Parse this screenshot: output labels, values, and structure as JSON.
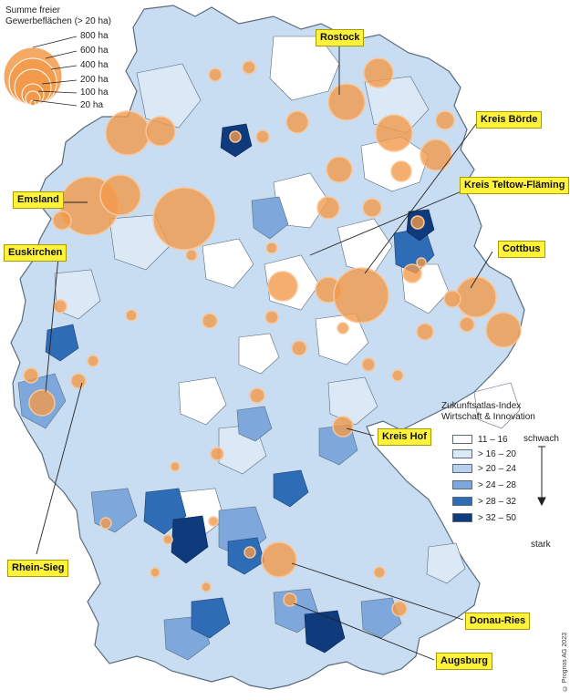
{
  "size_legend": {
    "title_line1": "Summe freier",
    "title_line2": "Gewerbeflächen (> 20 ha)",
    "entries": [
      "800 ha",
      "600 ha",
      "400 ha",
      "200 ha",
      "100 ha",
      "20 ha"
    ]
  },
  "index_legend": {
    "title_line1": "Zukunftsatlas-Index",
    "title_line2": "Wirtschaft & Innovation",
    "classes": [
      {
        "label": "11 – 16",
        "color": "#ffffff"
      },
      {
        "label": "> 16 – 20",
        "color": "#dbe9f7"
      },
      {
        "label": "> 20 – 24",
        "color": "#b6d0ee"
      },
      {
        "label": "> 24 – 28",
        "color": "#7ea8dc"
      },
      {
        "label": "> 28 – 32",
        "color": "#2f6cb6"
      },
      {
        "label": "> 32 – 50",
        "color": "#0f3b7c"
      }
    ],
    "weak_label": "schwach",
    "strong_label": "stark"
  },
  "region_labels": {
    "rostock": "Rostock",
    "kreis_boerde": "Kreis Börde",
    "kreis_teltow_flaeming": "Kreis Teltow-Fläming",
    "emsland": "Emsland",
    "cottbus": "Cottbus",
    "euskirchen": "Euskirchen",
    "kreis_hof": "Kreis Hof",
    "rhein_sieg": "Rhein-Sieg",
    "donau_ries": "Donau-Ries",
    "augsburg": "Augsburg"
  },
  "copyright": "© Prognos AG 2023",
  "colors": {
    "bubble_fill": "#f29a4a",
    "bubble_stroke": "#f7c79c",
    "label_bg": "#fff23a",
    "border": "#5a6b7c"
  }
}
